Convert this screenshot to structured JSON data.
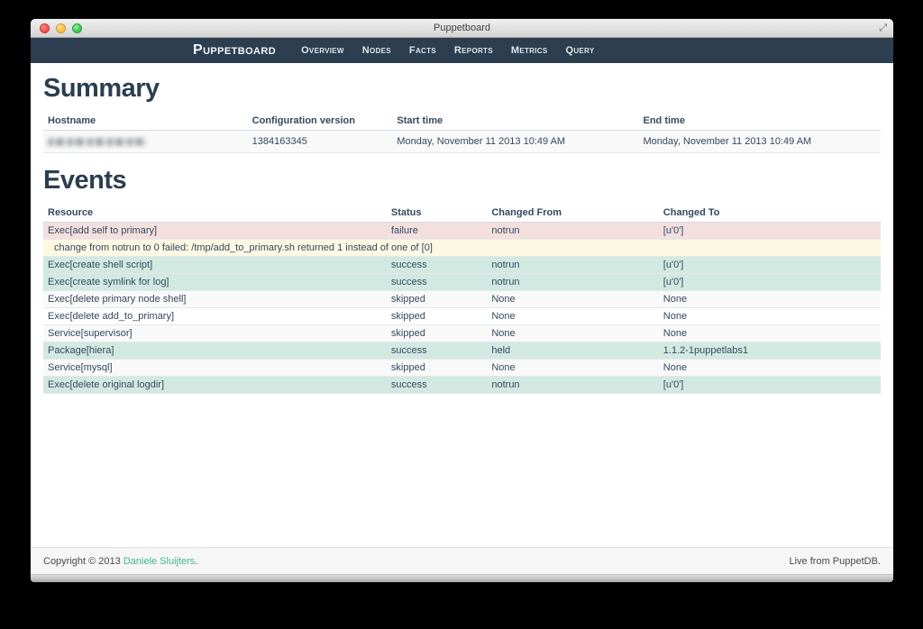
{
  "window": {
    "title": "Puppetboard",
    "fullscreen_icon": "⤢"
  },
  "navbar": {
    "brand": "Puppetboard",
    "items": [
      "Overview",
      "Nodes",
      "Facts",
      "Reports",
      "Metrics",
      "Query"
    ]
  },
  "summary": {
    "heading": "Summary",
    "columns": [
      "Hostname",
      "Configuration version",
      "Start time",
      "End time"
    ],
    "row": {
      "hostname_redacted": true,
      "config_version": "1384163345",
      "start_time": "Monday, November 11 2013 10:49 AM",
      "end_time": "Monday, November 11 2013 10:49 AM"
    }
  },
  "events": {
    "heading": "Events",
    "columns": [
      "Resource",
      "Status",
      "Changed From",
      "Changed To"
    ],
    "rows": [
      {
        "type": "event",
        "status_class": "failure",
        "resource": "Exec[add self to primary]",
        "status": "failure",
        "changed_from": "notrun",
        "changed_to": "[u'0']"
      },
      {
        "type": "message",
        "status_class": "warning",
        "message": "change from notrun to 0 failed: /tmp/add_to_primary.sh returned 1 instead of one of [0]"
      },
      {
        "type": "event",
        "status_class": "success",
        "resource": "Exec[create shell script]",
        "status": "success",
        "changed_from": "notrun",
        "changed_to": "[u'0']"
      },
      {
        "type": "event",
        "status_class": "success",
        "resource": "Exec[create symlink for log]",
        "status": "success",
        "changed_from": "notrun",
        "changed_to": "[u'0']"
      },
      {
        "type": "event",
        "status_class": "none",
        "resource": "Exec[delete primary node shell]",
        "status": "skipped",
        "changed_from": "None",
        "changed_to": "None"
      },
      {
        "type": "event",
        "status_class": "none",
        "resource": "Exec[delete add_to_primary]",
        "status": "skipped",
        "changed_from": "None",
        "changed_to": "None"
      },
      {
        "type": "event",
        "status_class": "none",
        "resource": "Service[supervisor]",
        "status": "skipped",
        "changed_from": "None",
        "changed_to": "None"
      },
      {
        "type": "event",
        "status_class": "success",
        "resource": "Package[hiera]",
        "status": "success",
        "changed_from": "held",
        "changed_to": "1.1.2-1puppetlabs1"
      },
      {
        "type": "event",
        "status_class": "none",
        "resource": "Service[mysql]",
        "status": "skipped",
        "changed_from": "None",
        "changed_to": "None"
      },
      {
        "type": "event",
        "status_class": "success",
        "resource": "Exec[delete original logdir]",
        "status": "success",
        "changed_from": "notrun",
        "changed_to": "[u'0']"
      }
    ]
  },
  "footer": {
    "copyright_prefix": "Copyright © 2013 ",
    "copyright_link": "Daniele Sluijters",
    "copyright_suffix": ".",
    "right_text": "Live from PuppetDB."
  },
  "colors": {
    "navbar_bg": "#2c3e50",
    "heading": "#2c3e50",
    "failure_bg": "#f3dfde",
    "warning_bg": "#fdf8e3",
    "success_bg": "#d2e9e1",
    "stripe_bg": "#f9f9f9",
    "link": "#43b595"
  }
}
